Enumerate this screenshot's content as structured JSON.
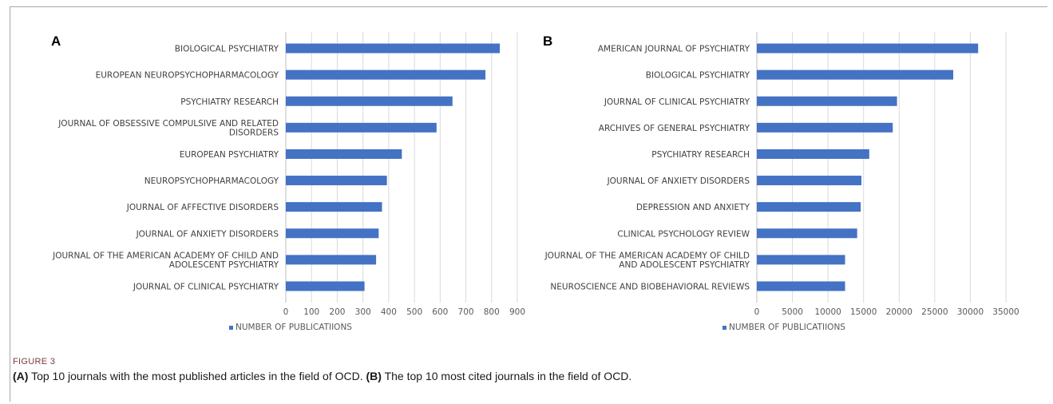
{
  "figure_label": "FIGURE 3",
  "caption": {
    "a_tag": "(A)",
    "a_text": " Top 10 journals with the most published articles in the field of OCD. ",
    "b_tag": "(B)",
    "b_text": " The top 10 most cited journals in the field of OCD."
  },
  "colors": {
    "bar": "#4472c4",
    "grid": "#d9d9d9"
  },
  "panels": [
    {
      "letter": "A",
      "legend": "NUMBER OF PUBLICATIIONS"
    },
    {
      "letter": "B",
      "legend": "NUMBER OF PUBLICATIIONS"
    }
  ],
  "chart_data": [
    {
      "type": "bar",
      "orientation": "horizontal",
      "categories": [
        [
          "BIOLOGICAL PSYCHIATRY"
        ],
        [
          "EUROPEAN NEUROPSYCHOPHARMACOLOGY"
        ],
        [
          "PSYCHIATRY RESEARCH"
        ],
        [
          "JOURNAL OF OBSESSIVE COMPULSIVE AND RELATED",
          "DISORDERS"
        ],
        [
          "EUROPEAN PSYCHIATRY"
        ],
        [
          "NEUROPSYCHOPHARMACOLOGY"
        ],
        [
          "JOURNAL OF AFFECTIVE DISORDERS"
        ],
        [
          "JOURNAL OF ANXIETY DISORDERS"
        ],
        [
          "JOURNAL OF THE AMERICAN ACADEMY OF CHILD AND",
          "ADOLESCENT PSYCHIATRY"
        ],
        [
          "JOURNAL OF CLINICAL PSYCHIATRY"
        ]
      ],
      "series": [
        {
          "name": "NUMBER OF PUBLICATIIONS",
          "values": [
            832,
            776,
            648,
            586,
            451,
            393,
            374,
            361,
            351,
            306
          ]
        }
      ],
      "xlim": [
        0,
        900
      ],
      "xticks": [
        "0",
        "100",
        "200",
        "300",
        "400",
        "500",
        "600",
        "700",
        "800",
        "900"
      ],
      "grid": true,
      "legend_position": "bottom-left"
    },
    {
      "type": "bar",
      "orientation": "horizontal",
      "categories": [
        [
          "AMERICAN JOURNAL OF PSYCHIATRY"
        ],
        [
          "BIOLOGICAL PSYCHIATRY"
        ],
        [
          "JOURNAL OF CLINICAL PSYCHIATRY"
        ],
        [
          "ARCHIVES OF GENERAL PSYCHIATRY"
        ],
        [
          "PSYCHIATRY RESEARCH"
        ],
        [
          "JOURNAL OF ANXIETY DISORDERS"
        ],
        [
          "DEPRESSION AND ANXIETY"
        ],
        [
          "CLINICAL PSYCHOLOGY REVIEW"
        ],
        [
          "JOURNAL OF THE AMERICAN ACADEMY OF CHILD",
          "AND ADOLESCENT PSYCHIATRY"
        ],
        [
          "NEUROSCIENCE AND BIOBEHAVIORAL REVIEWS"
        ]
      ],
      "series": [
        {
          "name": "NUMBER OF PUBLICATIIONS",
          "values": [
            31100,
            27600,
            19700,
            19100,
            15800,
            14700,
            14600,
            14100,
            12400,
            12400
          ]
        }
      ],
      "xlim": [
        0,
        35000
      ],
      "xticks": [
        "0",
        "5000",
        "10000",
        "15000",
        "20000",
        "25000",
        "30000",
        "35000"
      ],
      "grid": true,
      "legend_position": "bottom-left"
    }
  ]
}
